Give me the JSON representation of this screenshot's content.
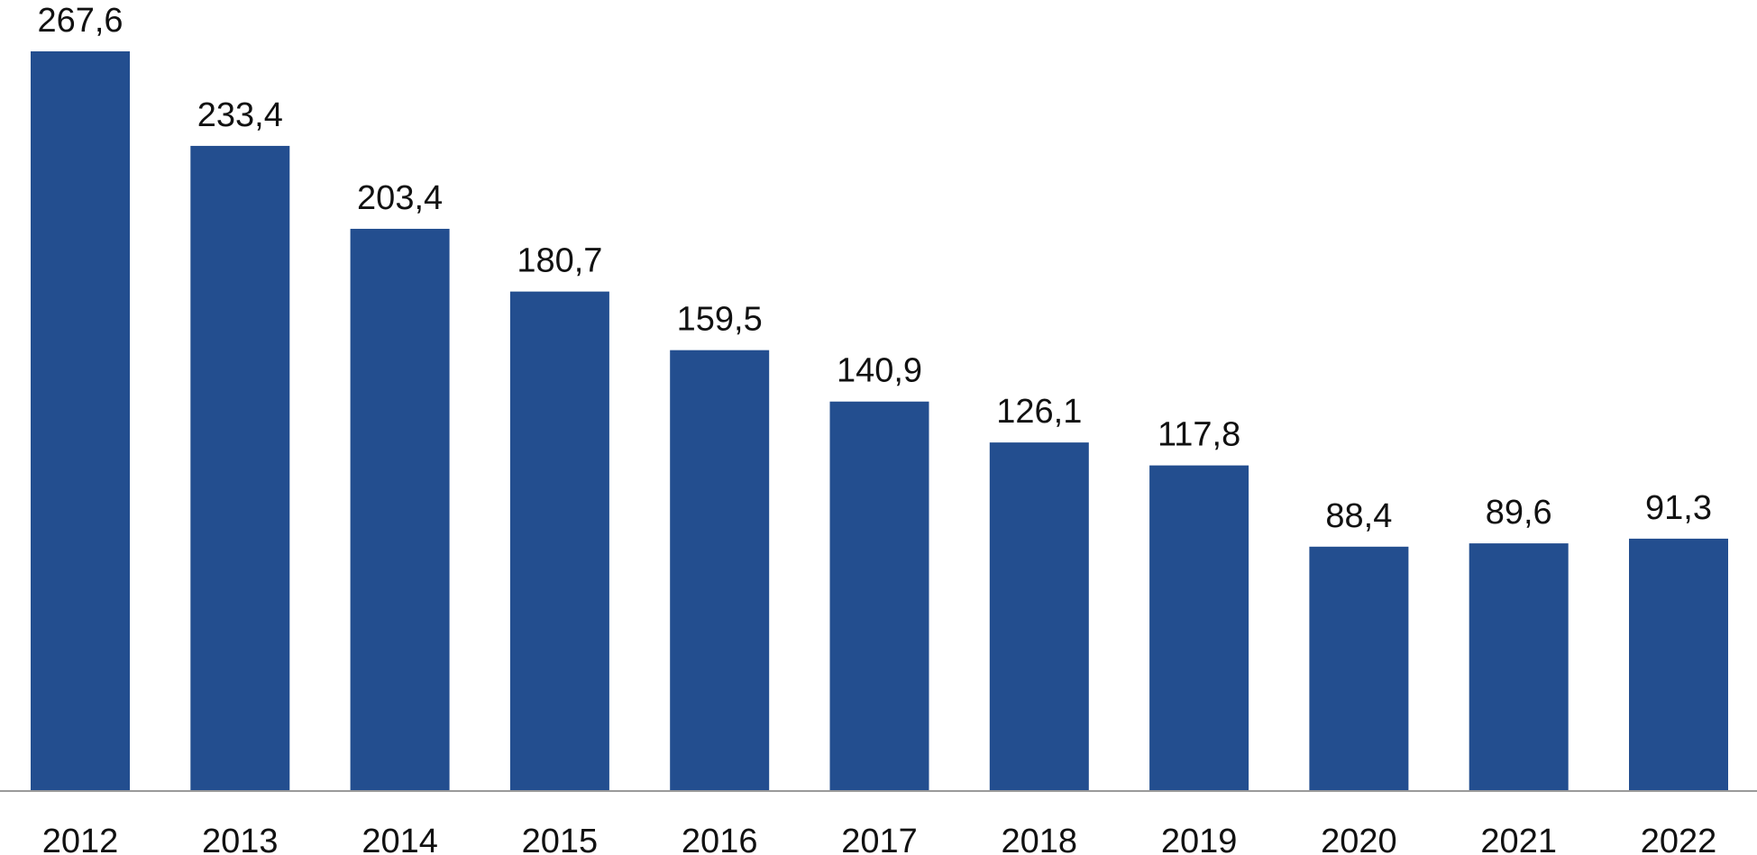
{
  "chart_data": {
    "type": "bar",
    "categories": [
      "2012",
      "2013",
      "2014",
      "2015",
      "2016",
      "2017",
      "2018",
      "2019",
      "2020",
      "2021",
      "2022"
    ],
    "values": [
      267.6,
      233.4,
      203.4,
      180.7,
      159.5,
      140.9,
      126.1,
      117.8,
      88.4,
      89.6,
      91.3
    ],
    "value_labels": [
      "267,6",
      "233,4",
      "203,4",
      "180,7",
      "159,5",
      "140,9",
      "126,1",
      "117,8",
      "88,4",
      "89,6",
      "91,3"
    ],
    "title": "",
    "xlabel": "",
    "ylabel": "",
    "ylim": [
      0,
      267.6
    ],
    "grid": false,
    "bar_color": "#234e8f"
  }
}
